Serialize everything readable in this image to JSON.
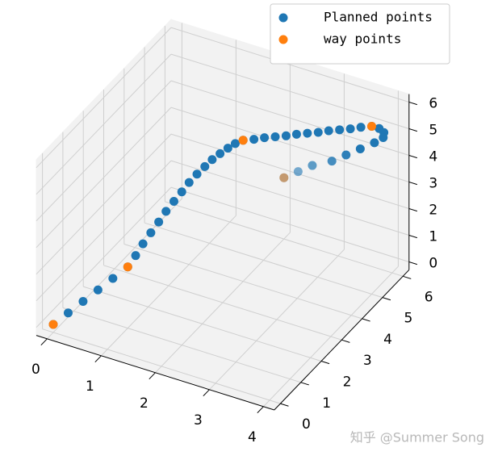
{
  "chart_data": {
    "type": "scatter3d",
    "series": [
      {
        "name": "Planned points",
        "color": "#1f77b4",
        "x": [
          0,
          0.2,
          0.4,
          0.6,
          0.8,
          1.0,
          1.07,
          1.13,
          1.2,
          1.27,
          1.33,
          1.4,
          1.47,
          1.53,
          1.6,
          1.67,
          1.73,
          1.8,
          1.87,
          1.93,
          2,
          2.17,
          2.33,
          2.5,
          2.67,
          2.83,
          3.0,
          3.17,
          3.33,
          3.5,
          3.67,
          3.83,
          4,
          4.1,
          4.15,
          4.1,
          3.9,
          3.6,
          3.3,
          3.0,
          2.6,
          2.3,
          2
        ],
        "y": [
          0,
          0.2,
          0.4,
          0.6,
          0.8,
          1.0,
          1.2,
          1.4,
          1.6,
          1.8,
          2.0,
          2.2,
          2.4,
          2.6,
          2.8,
          3.0,
          3.2,
          3.4,
          3.6,
          3.8,
          4,
          4.08,
          4.17,
          4.25,
          4.33,
          4.42,
          4.5,
          4.58,
          4.67,
          4.75,
          4.83,
          4.92,
          5,
          5.1,
          5.2,
          5.3,
          5.4,
          5.5,
          5.6,
          5.7,
          5.8,
          5.9,
          6
        ],
        "z": [
          0,
          0.4,
          0.8,
          1.2,
          1.6,
          2.0,
          2.31,
          2.63,
          2.93,
          3.22,
          3.5,
          3.76,
          4.0,
          4.23,
          4.43,
          4.6,
          4.74,
          4.85,
          4.94,
          4.99,
          5,
          5.08,
          5.17,
          5.25,
          5.33,
          5.42,
          5.5,
          5.58,
          5.67,
          5.75,
          5.83,
          5.92,
          6,
          5.9,
          5.7,
          5.4,
          5.0,
          4.5,
          4.0,
          3.5,
          3.0,
          2.5,
          2
        ]
      },
      {
        "name": "way points",
        "color": "#ff7f0e",
        "x": [
          0,
          1,
          2,
          4,
          2
        ],
        "y": [
          0,
          1,
          4,
          5,
          6
        ],
        "z": [
          0,
          2,
          5,
          6,
          2
        ]
      }
    ],
    "xlim": [
      -0.2,
      4.2
    ],
    "ylim": [
      -0.3,
      6.3
    ],
    "zlim": [
      -0.3,
      6.3
    ],
    "xticks": [
      0,
      1,
      2,
      3,
      4
    ],
    "yticks": [
      0,
      1,
      2,
      3,
      4,
      5,
      6
    ],
    "zticks": [
      0,
      1,
      2,
      3,
      4,
      5,
      6
    ],
    "grid": true,
    "legend": "upper right",
    "watermark": "知乎 @Summer Song"
  }
}
